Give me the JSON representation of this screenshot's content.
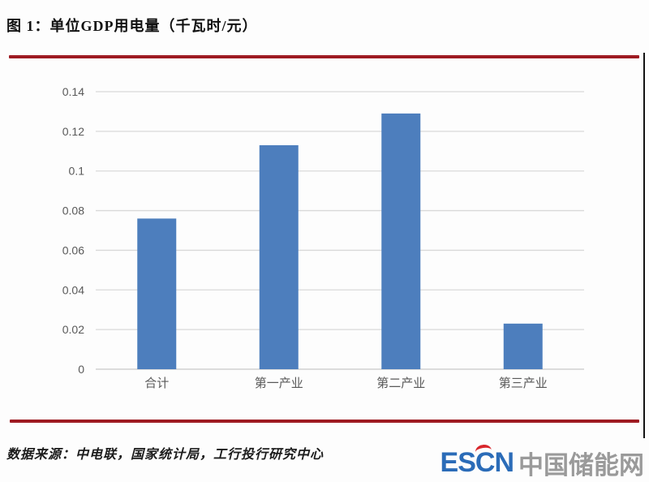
{
  "page": {
    "title": "图 1：单位GDP用电量（千瓦时/元）",
    "source_text": "数据来源：中电联，国家统计局，工行投行研究中心",
    "accent_red": "#9e1b22",
    "logo": {
      "escn": "ESCN",
      "cn": "中国储能网",
      "escn_color": "#2b6cb8",
      "cn_color": "#9a9a9a",
      "accent_color": "#d8262b"
    }
  },
  "chart_data": {
    "type": "bar",
    "title": "单位GDP用电量（千瓦时/元）",
    "categories": [
      "合计",
      "第一产业",
      "第二产业",
      "第三产业"
    ],
    "values": [
      0.076,
      0.113,
      0.129,
      0.023
    ],
    "xlabel": "",
    "ylabel": "",
    "ylim": [
      0,
      0.14
    ],
    "ytick_step": 0.02,
    "ytick_labels": [
      "0",
      "0.02",
      "0.04",
      "0.06",
      "0.08",
      "0.1",
      "0.12",
      "0.14"
    ],
    "grid": true,
    "legend": false,
    "bar_color": "#4d7ebd",
    "gridline_color": "#d9d9d9",
    "axis_line_color": "#c8c8c8",
    "tick_label_color": "#595959"
  }
}
